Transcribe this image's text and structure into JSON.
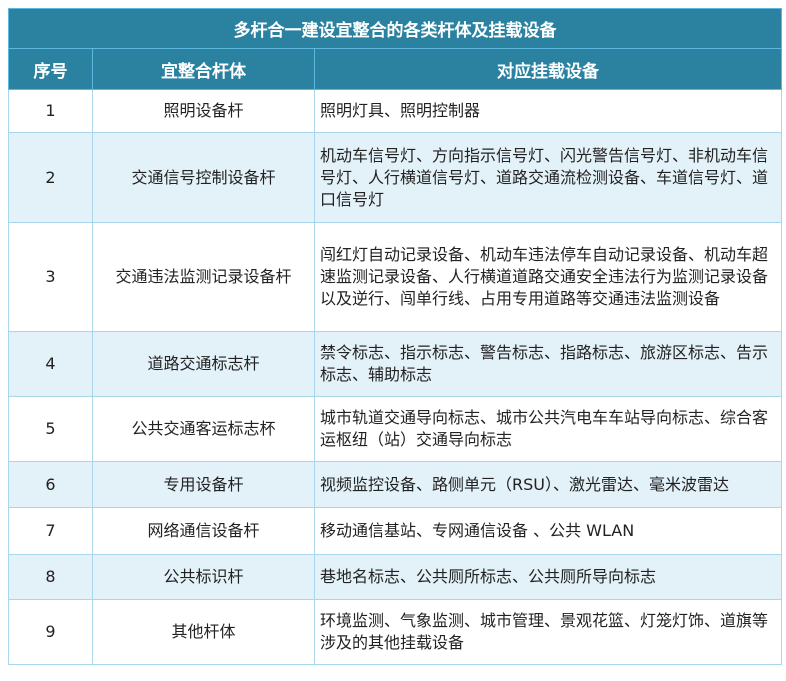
{
  "title": "多杆合一建设宜整合的各类杆体及挂载设备",
  "headers": [
    "序号",
    "宜整合杆体",
    "对应挂载设备"
  ],
  "rows": [
    {
      "no": "1",
      "pole": "照明设备杆",
      "devices": "照明灯具、照明控制器"
    },
    {
      "no": "2",
      "pole": "交通信号控制设备杆",
      "devices": "机动车信号灯、方向指示信号灯、闪光警告信号灯、非机动车信号灯、人行横道信号灯、道路交通流检测设备、车道信号灯、道口信号灯"
    },
    {
      "no": "3",
      "pole": "交通违法监测记录设备杆",
      "devices": "闯红灯自动记录设备、机动车违法停车自动记录设备、机动车超速监测记录设备、人行横道道路交通安全违法行为监测记录设备以及逆行、闯单行线、占用专用道路等交通违法监测设备"
    },
    {
      "no": "4",
      "pole": "道路交通标志杆",
      "devices": "禁令标志、指示标志、警告标志、指路标志、旅游区标志、告示标志、辅助标志"
    },
    {
      "no": "5",
      "pole": "公共交通客运标志杯",
      "devices": "城市轨道交通导向标志、城市公共汽电车车站导向标志、综合客运枢纽（站）交通导向标志"
    },
    {
      "no": "6",
      "pole": "专用设备杆",
      "devices": "视频监控设备、路侧单元（RSU）、激光雷达、毫米波雷达"
    },
    {
      "no": "7",
      "pole": "网络通信设备杆",
      "devices": "移动通信基站、专网通信设备 、公共 WLAN"
    },
    {
      "no": "8",
      "pole": "公共标识杆",
      "devices": "巷地名标志、公共厕所标志、公共厕所导向标志"
    },
    {
      "no": "9",
      "pole": "其他杆体",
      "devices": "环境监测、气象监测、城市管理、景观花篮、灯笼灯饰、道旗等涉及的其他挂载设备"
    }
  ]
}
